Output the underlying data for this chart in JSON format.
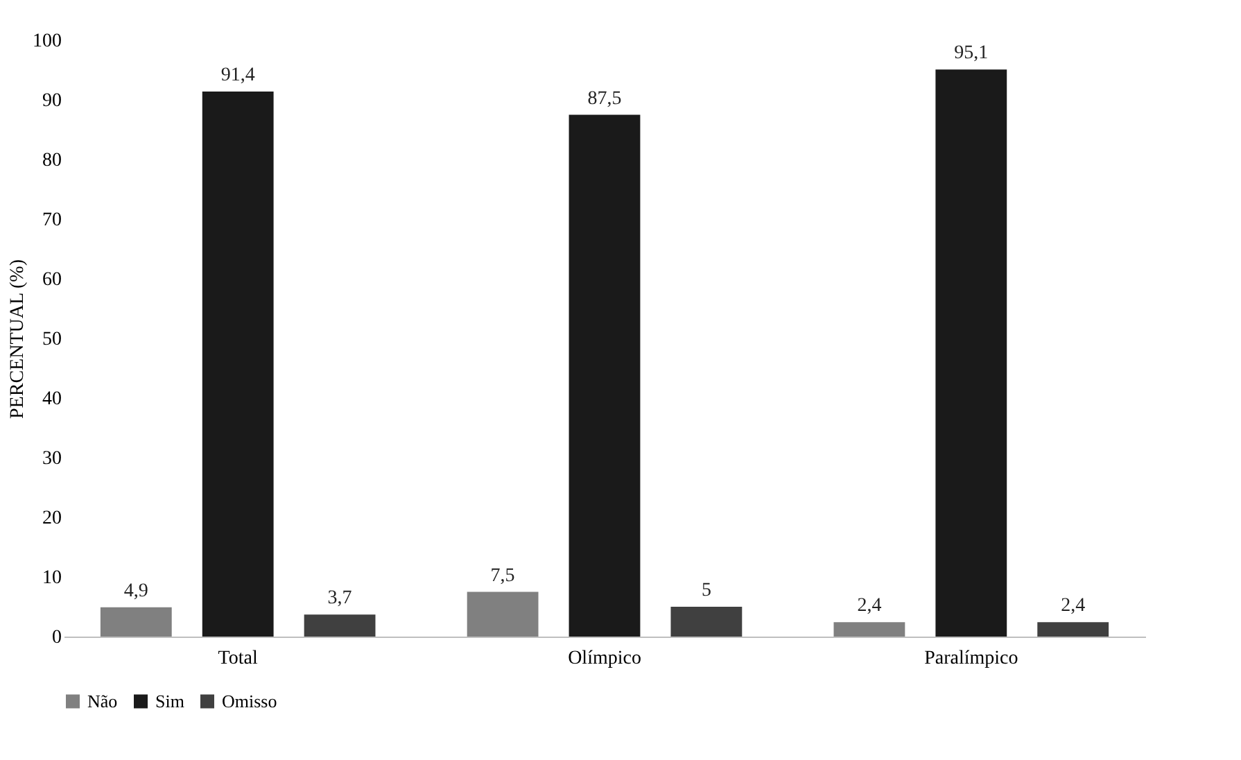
{
  "chart_data": {
    "type": "bar",
    "ylabel": "PERCENTUAL (%)",
    "categories": [
      "Total",
      "Olímpico",
      "Paralímpico"
    ],
    "series": [
      {
        "name": "Não",
        "color": "#808080",
        "values": [
          4.9,
          7.5,
          2.4
        ],
        "value_labels": [
          "4,9",
          "7,5",
          "2,4"
        ]
      },
      {
        "name": "Sim",
        "color": "#1a1a1a",
        "values": [
          91.4,
          87.5,
          95.1
        ],
        "value_labels": [
          "91,4",
          "87,5",
          "95,1"
        ]
      },
      {
        "name": "Omisso",
        "color": "#404040",
        "values": [
          3.7,
          5,
          2.4
        ],
        "value_labels": [
          "3,7",
          "5",
          "2,4"
        ]
      }
    ],
    "ylim": [
      0,
      100
    ],
    "yticks": [
      0,
      10,
      20,
      30,
      40,
      50,
      60,
      70,
      80,
      90,
      100
    ],
    "grid": false,
    "legend": "bottom"
  }
}
